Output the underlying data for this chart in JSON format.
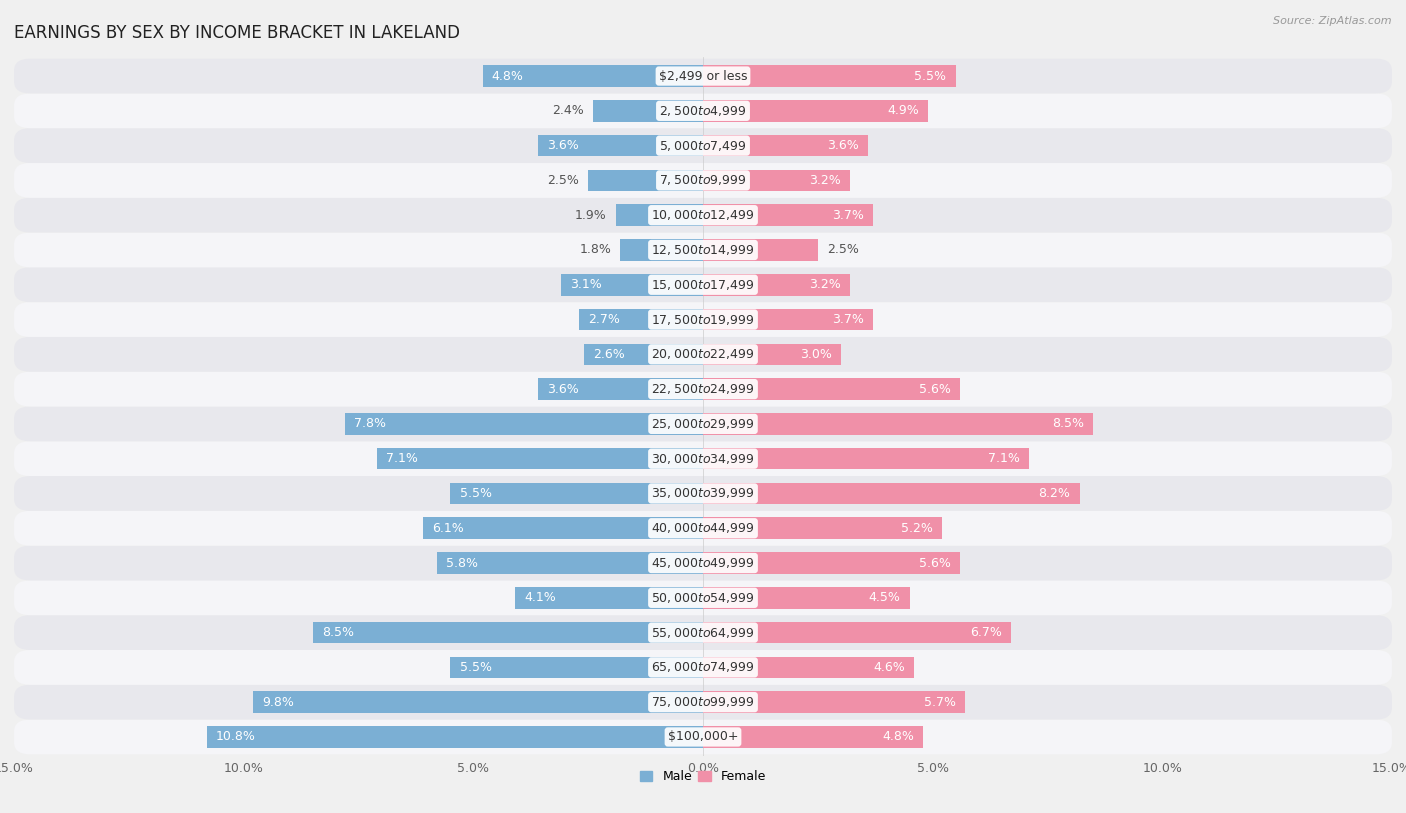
{
  "title": "EARNINGS BY SEX BY INCOME BRACKET IN LAKELAND",
  "source": "Source: ZipAtlas.com",
  "categories": [
    "$2,499 or less",
    "$2,500 to $4,999",
    "$5,000 to $7,499",
    "$7,500 to $9,999",
    "$10,000 to $12,499",
    "$12,500 to $14,999",
    "$15,000 to $17,499",
    "$17,500 to $19,999",
    "$20,000 to $22,499",
    "$22,500 to $24,999",
    "$25,000 to $29,999",
    "$30,000 to $34,999",
    "$35,000 to $39,999",
    "$40,000 to $44,999",
    "$45,000 to $49,999",
    "$50,000 to $54,999",
    "$55,000 to $64,999",
    "$65,000 to $74,999",
    "$75,000 to $99,999",
    "$100,000+"
  ],
  "male": [
    4.8,
    2.4,
    3.6,
    2.5,
    1.9,
    1.8,
    3.1,
    2.7,
    2.6,
    3.6,
    7.8,
    7.1,
    5.5,
    6.1,
    5.8,
    4.1,
    8.5,
    5.5,
    9.8,
    10.8
  ],
  "female": [
    5.5,
    4.9,
    3.6,
    3.2,
    3.7,
    2.5,
    3.2,
    3.7,
    3.0,
    5.6,
    8.5,
    7.1,
    8.2,
    5.2,
    5.6,
    4.5,
    6.7,
    4.6,
    5.7,
    4.8
  ],
  "male_color": "#7bafd4",
  "female_color": "#f090a8",
  "background_color": "#f0f0f0",
  "row_color_odd": "#e8e8ed",
  "row_color_even": "#f5f5f8",
  "xlim": 15.0,
  "bar_height": 0.62,
  "title_fontsize": 12,
  "label_fontsize": 9,
  "tick_fontsize": 9,
  "category_fontsize": 9,
  "inside_label_threshold": 2.5
}
